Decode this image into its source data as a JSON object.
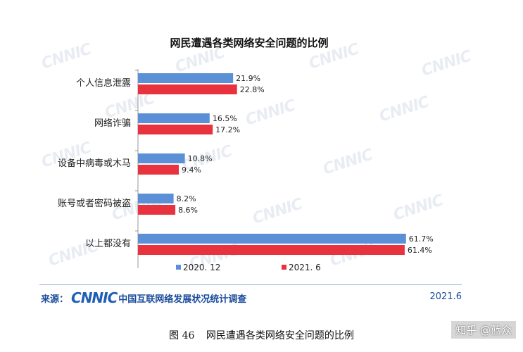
{
  "chart_data": {
    "type": "bar",
    "orientation": "horizontal",
    "title": "网民遭遇各类网络安全问题的比例",
    "categories": [
      "个人信息泄露",
      "网络诈骗",
      "设备中病毒或木马",
      "账号或者密码被盗",
      "以上都没有"
    ],
    "series": [
      {
        "name": "2020. 12",
        "values": [
          21.9,
          16.5,
          10.8,
          8.2,
          61.7
        ],
        "labels": [
          "21.9%",
          "16.5%",
          "10.8%",
          "8.2%",
          "61.7%"
        ],
        "color": "#5b8fd6"
      },
      {
        "name": "2021. 6",
        "values": [
          22.8,
          17.2,
          9.4,
          8.6,
          61.4
        ],
        "labels": [
          "22.8%",
          "17.2%",
          "9.4%",
          "8.6%",
          "61.4%"
        ],
        "color": "#e8323e"
      }
    ],
    "xlim": [
      0,
      70
    ],
    "legend_position": "bottom"
  },
  "footer": {
    "source_label": "来源：",
    "logo_text": "CNNIC",
    "source_name": "中国互联网络发展状况统计调查",
    "date": "2021.6"
  },
  "caption": {
    "figure_no": "图  46",
    "text": "网民遭遇各类网络安全问题的比例"
  },
  "credit": "知乎 @蓝众",
  "watermark": "CNNIC"
}
